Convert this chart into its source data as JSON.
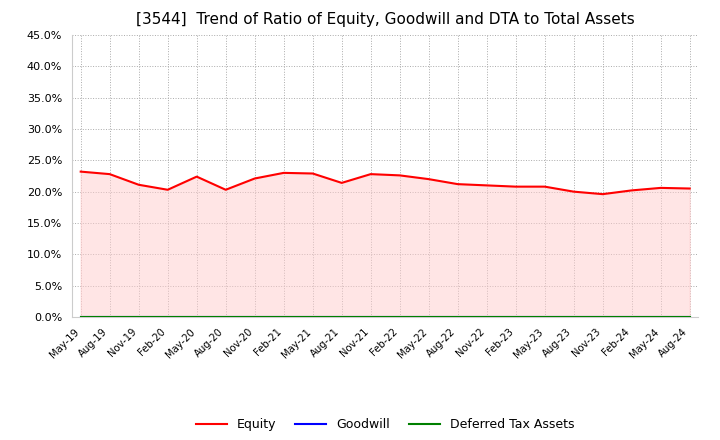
{
  "title": "[3544]  Trend of Ratio of Equity, Goodwill and DTA to Total Assets",
  "x_labels": [
    "May-19",
    "Aug-19",
    "Nov-19",
    "Feb-20",
    "May-20",
    "Aug-20",
    "Nov-20",
    "Feb-21",
    "May-21",
    "Aug-21",
    "Nov-21",
    "Feb-22",
    "May-22",
    "Aug-22",
    "Nov-22",
    "Feb-23",
    "May-23",
    "Aug-23",
    "Nov-23",
    "Feb-24",
    "May-24",
    "Aug-24"
  ],
  "equity": [
    0.232,
    0.228,
    0.211,
    0.203,
    0.224,
    0.203,
    0.221,
    0.23,
    0.229,
    0.214,
    0.228,
    0.226,
    0.22,
    0.212,
    0.21,
    0.208,
    0.208,
    0.2,
    0.196,
    0.202,
    0.206,
    0.205
  ],
  "goodwill": [
    0.0,
    0.0,
    0.0,
    0.0,
    0.0,
    0.0,
    0.0,
    0.0,
    0.0,
    0.0,
    0.0,
    0.0,
    0.0,
    0.0,
    0.0,
    0.0,
    0.0,
    0.0,
    0.0,
    0.0,
    0.0,
    0.0
  ],
  "dta": [
    0.0,
    0.0,
    0.0,
    0.0,
    0.0,
    0.0,
    0.0,
    0.0,
    0.0,
    0.0,
    0.0,
    0.0,
    0.0,
    0.0,
    0.0,
    0.0,
    0.0,
    0.0,
    0.0,
    0.0,
    0.0,
    0.0
  ],
  "equity_color": "#ff0000",
  "goodwill_color": "#0000ff",
  "dta_color": "#008000",
  "fill_color": "#ffcccc",
  "ylim": [
    0.0,
    0.45
  ],
  "yticks": [
    0.0,
    0.05,
    0.1,
    0.15,
    0.2,
    0.25,
    0.3,
    0.35,
    0.4,
    0.45
  ],
  "bg_color": "#ffffff",
  "grid_color": "#aaaaaa",
  "title_fontsize": 11,
  "legend_labels": [
    "Equity",
    "Goodwill",
    "Deferred Tax Assets"
  ]
}
